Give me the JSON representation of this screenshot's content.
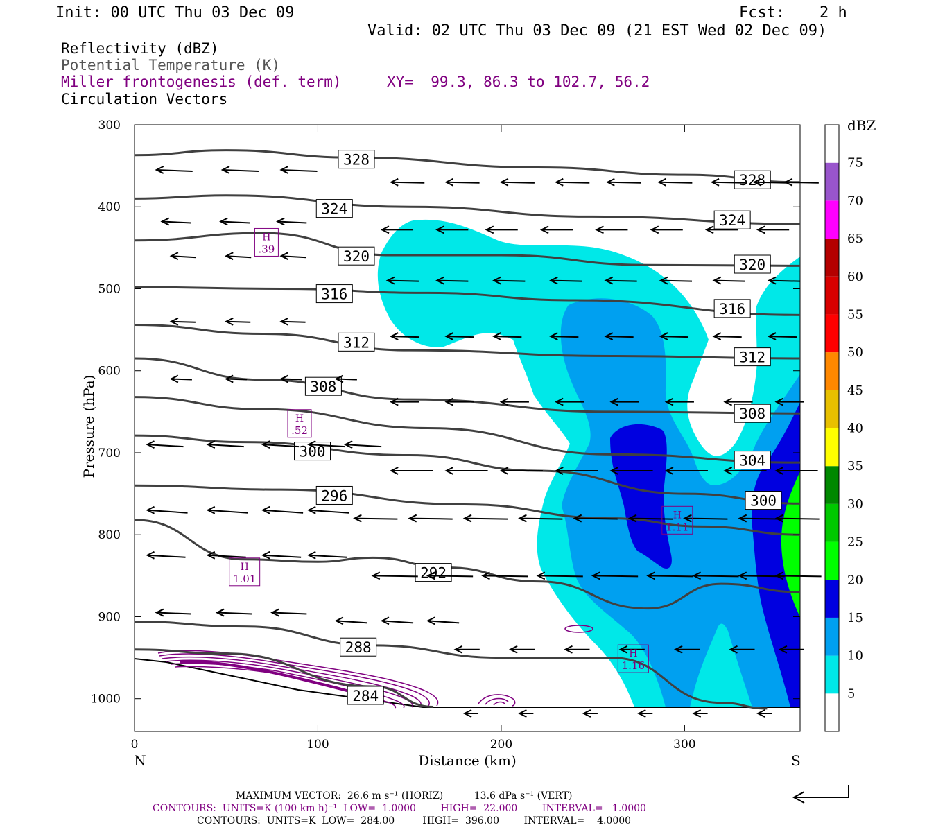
{
  "header": {
    "init": "Init: 00 UTC Thu 03 Dec 09",
    "fcst_label": "Fcst:",
    "fcst_value": "2 h",
    "valid": "Valid: 02 UTC Thu 03 Dec 09 (21 EST Wed 02 Dec 09)"
  },
  "legend": {
    "reflectivity": "Reflectivity (dBZ)",
    "potential_temperature": "Potential Temperature (K)",
    "frontogenesis": "Miller frontogenesis (def. term)",
    "xy": "XY=  99.3, 86.3 to 102.7, 56.2",
    "vectors": "Circulation Vectors"
  },
  "colors": {
    "theta": "#404040",
    "purple": "#800080",
    "db5": "#00e8e8",
    "db10": "#00a0f0",
    "db15": "#0000e0",
    "db20": "#00ff00"
  },
  "footer": {
    "max_vector": "MAXIMUM VECTOR:  26.6 m s⁻¹ (HORIZ)          13.6 dPa s⁻¹ (VERT)",
    "contours_purple": "CONTOURS:  UNITS=K (100 km h)⁻¹  LOW=  1.0000        HIGH=  22.000        INTERVAL=   1.0000",
    "contours_black": "CONTOURS:  UNITS=K  LOW=  284.00         HIGH=  396.00        INTERVAL=    4.0000"
  },
  "chart_data": {
    "type": "cross-section",
    "xlabel": "Distance (km)",
    "ylabel": "Pressure (hPa)",
    "xlim": [
      0,
      363
    ],
    "ylim": [
      1040,
      300
    ],
    "x_ticks": [
      0,
      100,
      200,
      300
    ],
    "x_tick_labels": [
      "0",
      "100",
      "200",
      "300"
    ],
    "y_ticks": [
      300,
      400,
      500,
      600,
      700,
      800,
      900,
      1000
    ],
    "y_tick_labels": [
      "300",
      "400",
      "500",
      "600",
      "700",
      "800",
      "900",
      "1000"
    ],
    "end_labels": {
      "left": "N",
      "right": "S"
    },
    "colorbar": {
      "unit": "dBZ",
      "levels": [
        5,
        10,
        15,
        20,
        25,
        30,
        35,
        40,
        45,
        50,
        55,
        60,
        65,
        70,
        75
      ],
      "level_labels": [
        "5",
        "10",
        "15",
        "20",
        "25",
        "30",
        "35",
        "40",
        "45",
        "50",
        "55",
        "60",
        "65",
        "70",
        "75"
      ],
      "colors": [
        "#ffffff",
        "#00e8e8",
        "#00a0f0",
        "#0000e0",
        "#00ff00",
        "#00c800",
        "#008800",
        "#ffff00",
        "#e8c000",
        "#ff8800",
        "#ff0000",
        "#d80000",
        "#b40000",
        "#ff00ff",
        "#9955cc",
        "#ffffff"
      ]
    },
    "theta_contours": [
      {
        "label": "328",
        "points": [
          [
            0,
            337
          ],
          [
            50,
            331
          ],
          [
            120,
            340
          ],
          [
            220,
            352
          ],
          [
            300,
            361
          ],
          [
            363,
            370
          ]
        ],
        "labels_at": [
          [
            121,
            342
          ],
          [
            337,
            367
          ]
        ]
      },
      {
        "label": "324",
        "points": [
          [
            0,
            390
          ],
          [
            50,
            386
          ],
          [
            150,
            400
          ],
          [
            250,
            412
          ],
          [
            363,
            421
          ]
        ],
        "labels_at": [
          [
            109,
            402
          ],
          [
            326,
            416
          ]
        ]
      },
      {
        "label": "320",
        "points": [
          [
            0,
            441
          ],
          [
            70,
            432
          ],
          [
            140,
            459
          ],
          [
            200,
            459
          ],
          [
            280,
            471
          ],
          [
            363,
            472
          ]
        ],
        "labels_at": [
          [
            121,
            460
          ],
          [
            337,
            470
          ]
        ]
      },
      {
        "label": "316",
        "points": [
          [
            0,
            498
          ],
          [
            80,
            500
          ],
          [
            160,
            505
          ],
          [
            240,
            514
          ],
          [
            363,
            532
          ]
        ],
        "labels_at": [
          [
            109,
            506
          ],
          [
            326,
            524
          ]
        ]
      },
      {
        "label": "312",
        "points": [
          [
            0,
            544
          ],
          [
            70,
            555
          ],
          [
            150,
            575
          ],
          [
            260,
            582
          ],
          [
            363,
            585
          ]
        ],
        "labels_at": [
          [
            121,
            565
          ],
          [
            337,
            583
          ]
        ]
      },
      {
        "label": "308",
        "points": [
          [
            0,
            585
          ],
          [
            70,
            611
          ],
          [
            150,
            635
          ],
          [
            260,
            650
          ],
          [
            363,
            652
          ]
        ],
        "labels_at": [
          [
            103,
            619
          ],
          [
            337,
            652
          ]
        ]
      },
      {
        "label": "304",
        "points": [
          [
            0,
            632
          ],
          [
            70,
            647
          ],
          [
            160,
            670
          ],
          [
            260,
            702
          ],
          [
            363,
            712
          ]
        ],
        "labels_at": [
          [
            337,
            709
          ]
        ]
      },
      {
        "label": "300",
        "points": [
          [
            0,
            679
          ],
          [
            60,
            687
          ],
          [
            150,
            703
          ],
          [
            220,
            722
          ],
          [
            300,
            750
          ],
          [
            363,
            762
          ]
        ],
        "labels_at": [
          [
            97,
            698
          ],
          [
            343,
            758
          ]
        ]
      },
      {
        "label": "296",
        "points": [
          [
            0,
            740
          ],
          [
            80,
            745
          ],
          [
            180,
            763
          ],
          [
            260,
            780
          ],
          [
            310,
            790
          ],
          [
            363,
            800
          ]
        ],
        "labels_at": [
          [
            109,
            752
          ]
        ]
      },
      {
        "label": "292",
        "points": [
          [
            0,
            782
          ],
          [
            60,
            830
          ],
          [
            100,
            833
          ],
          [
            130,
            828
          ],
          [
            170,
            840
          ],
          [
            220,
            857
          ],
          [
            280,
            890
          ],
          [
            320,
            860
          ],
          [
            363,
            870
          ]
        ],
        "labels_at": [
          [
            163,
            846
          ]
        ]
      },
      {
        "label": "288",
        "points": [
          [
            0,
            906
          ],
          [
            60,
            912
          ],
          [
            130,
            935
          ],
          [
            200,
            950
          ],
          [
            260,
            950
          ],
          [
            320,
            1005
          ],
          [
            345,
            1012
          ]
        ],
        "labels_at": [
          [
            122,
            937
          ]
        ]
      },
      {
        "label": "284",
        "points": [
          [
            0,
            940
          ],
          [
            50,
            945
          ],
          [
            130,
            985
          ],
          [
            163,
            1010
          ]
        ],
        "labels_at": [
          [
            126,
            996
          ]
        ]
      }
    ],
    "highs": [
      {
        "label": "H",
        "value": ".39",
        "x": 72,
        "y": 445
      },
      {
        "label": "H",
        "value": ".52",
        "x": 90,
        "y": 666
      },
      {
        "label": "H",
        "value": "1.01",
        "x": 60,
        "y": 847
      },
      {
        "label": "H",
        "value": "1.11",
        "x": 296,
        "y": 784
      },
      {
        "label": "H",
        "value": "1.16",
        "x": 272,
        "y": 953
      }
    ],
    "grid": false
  }
}
